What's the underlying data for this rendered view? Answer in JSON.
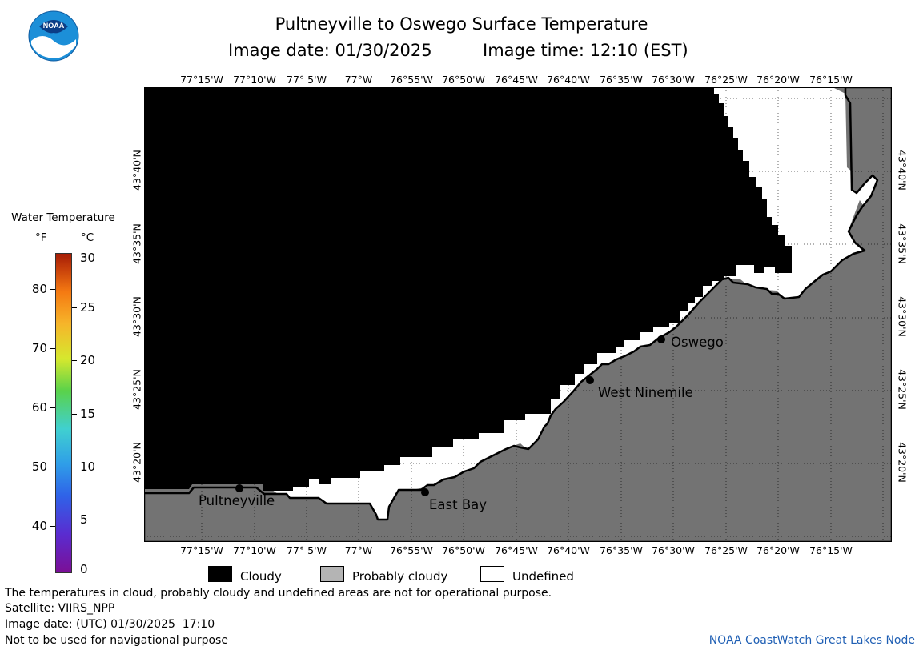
{
  "header": {
    "title": "Pultneyville to Oswego Surface Temperature",
    "image_date_label": "Image date: 01/30/2025",
    "image_time_label": "Image time: 12:10 (EST)"
  },
  "logo": {
    "text": "NOAA"
  },
  "longitude_labels": [
    "77°15'W",
    "77°10'W",
    "77° 5'W",
    "77°W",
    "76°55'W",
    "76°50'W",
    "76°45'W",
    "76°40'W",
    "76°35'W",
    "76°30'W",
    "76°25'W",
    "76°20'W",
    "76°15'W"
  ],
  "latitude_labels": [
    "43°40'N",
    "43°35'N",
    "43°30'N",
    "43°25'N",
    "43°20'N"
  ],
  "places": [
    {
      "name": "Pultneyville"
    },
    {
      "name": "East Bay"
    },
    {
      "name": "West Ninemile"
    },
    {
      "name": "Oswego"
    }
  ],
  "legend": {
    "title": "Water Temperature",
    "unit_f": "°F",
    "unit_c": "°C",
    "f_ticks": [
      "80",
      "70",
      "60",
      "50",
      "40"
    ],
    "c_ticks": [
      "30",
      "25",
      "20",
      "15",
      "10",
      "5",
      "0"
    ]
  },
  "key": {
    "cloudy": "Cloudy",
    "probably_cloudy": "Probably cloudy",
    "undefined": "Undefined",
    "cloudy_color": "#000000",
    "probably_cloudy_color": "#b4b4b4",
    "undefined_color": "#ffffff"
  },
  "map_colors": {
    "land": "#737373",
    "cloud": "#000000",
    "undefined": "#ffffff"
  },
  "footer": {
    "line1": "The temperatures in cloud, probably cloudy and undefined areas are not for operational purpose.",
    "line2": "Satellite: VIIRS_NPP",
    "line3": "Image date: (UTC) 01/30/2025  17:10",
    "line4": "Not to be used for navigational purpose",
    "credit": "NOAA CoastWatch Great Lakes Node"
  }
}
